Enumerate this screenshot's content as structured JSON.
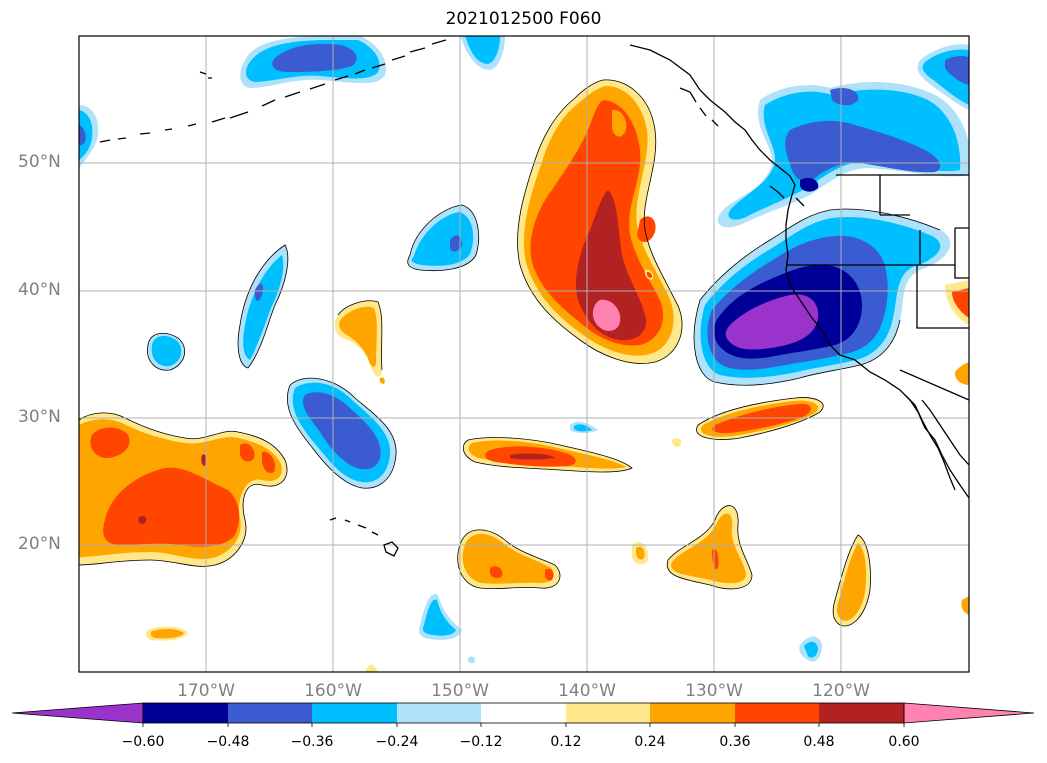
{
  "title": "2021012500 F060",
  "map": {
    "lat_labels": [
      "50°N",
      "40°N",
      "30°N",
      "20°N"
    ],
    "lon_labels": [
      "170°W",
      "160°W",
      "150°W",
      "140°W",
      "130°W",
      "120°W"
    ],
    "gridlines": true,
    "region": "North Pacific / West Coast of North America"
  },
  "colorbar": {
    "ticks": [
      "−0.60",
      "−0.48",
      "−0.36",
      "−0.24",
      "−0.12",
      "0.12",
      "0.24",
      "0.36",
      "0.48",
      "0.60"
    ],
    "colors": [
      "#9933cc",
      "#000099",
      "#3a5cd0",
      "#00bfff",
      "#aee2fa",
      "#ffffff",
      "#ffe88a",
      "#ffa500",
      "#ff4500",
      "#b22222",
      "#ff82b0"
    ],
    "extend": "both"
  },
  "colors": {
    "gridline": "#b0b0b0",
    "coastline": "#000000",
    "label": "#808080"
  }
}
